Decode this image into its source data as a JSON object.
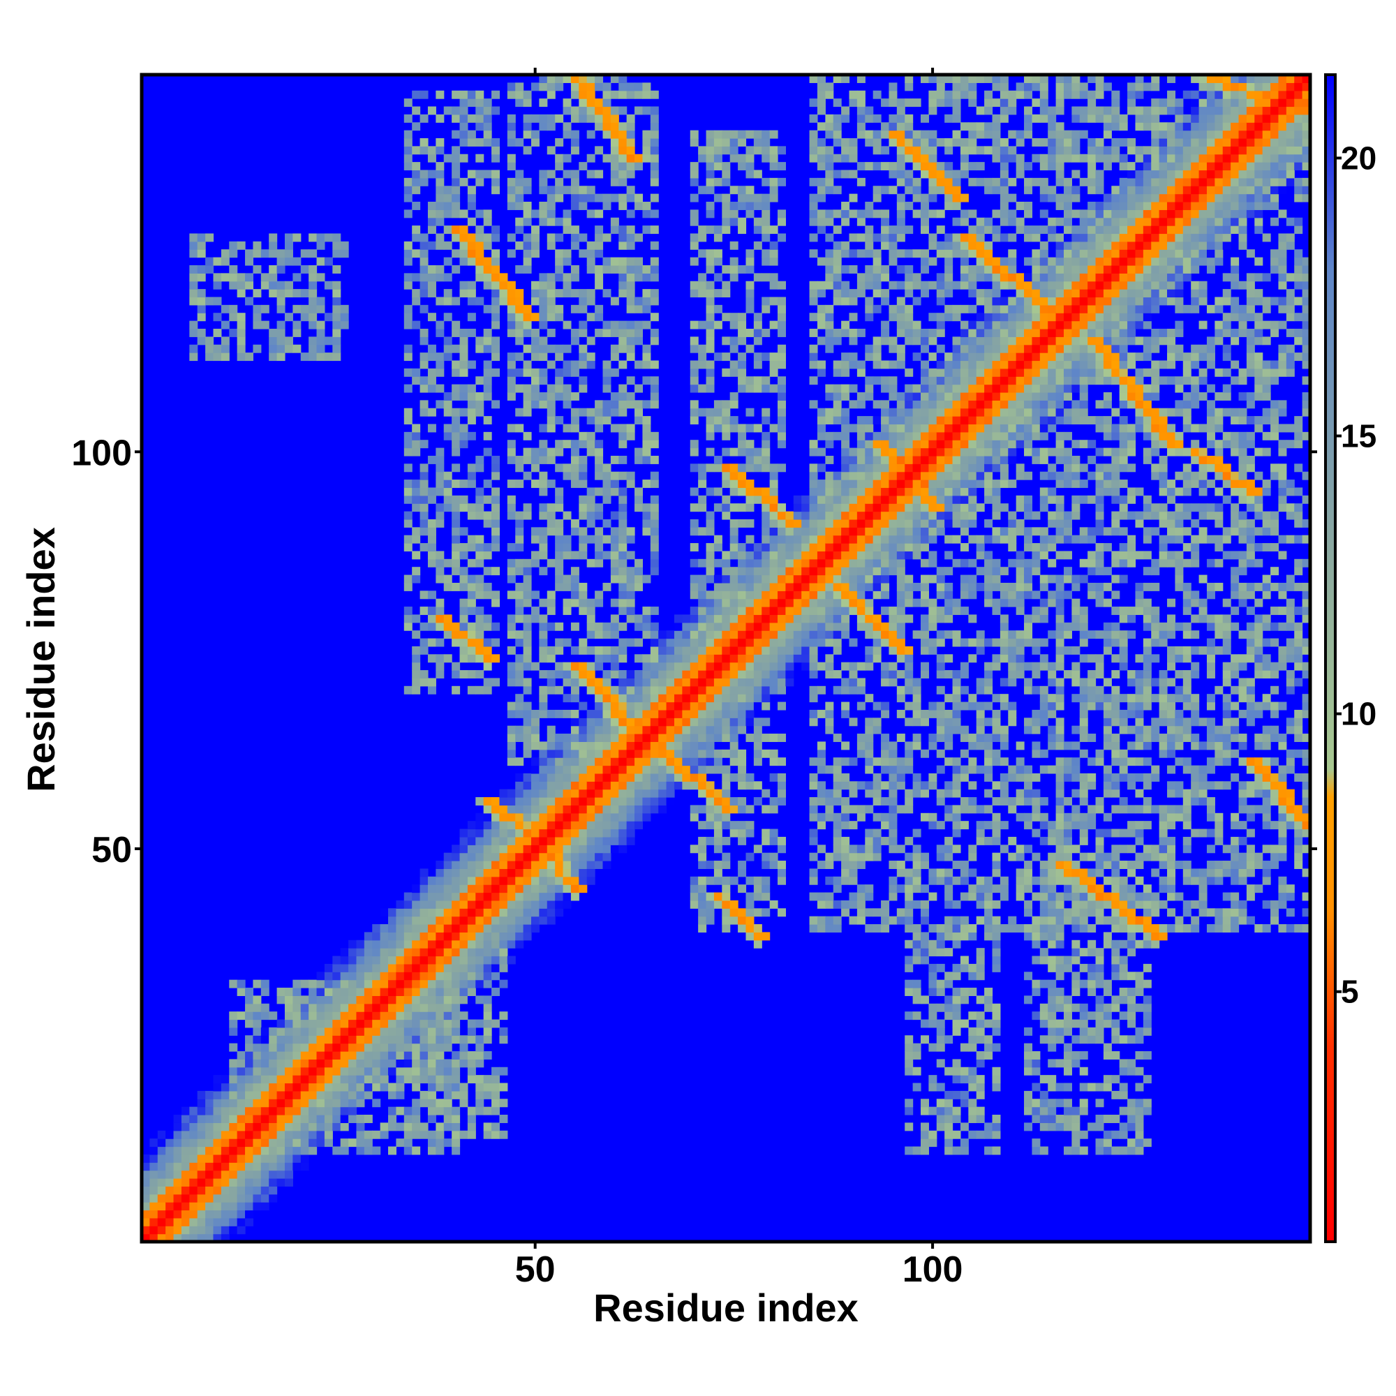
{
  "chart_data": {
    "type": "heatmap",
    "title": "",
    "xlabel": "Residue index",
    "ylabel": "Residue index",
    "n_residues": 147,
    "xlim": [
      0.5,
      147.5
    ],
    "ylim": [
      0.5,
      147.5
    ],
    "x_ticks": [
      50,
      100
    ],
    "y_ticks": [
      50,
      100
    ],
    "x_tick_labels": [
      "50",
      "100"
    ],
    "y_tick_labels": [
      "50",
      "100"
    ],
    "colorbar": {
      "range": [
        0.5,
        21.5
      ],
      "ticks": [
        5,
        10,
        15,
        20
      ],
      "tick_labels": [
        "5",
        "10",
        "15",
        "20"
      ],
      "stops": [
        {
          "value": 0.5,
          "color": "#ff0000"
        },
        {
          "value": 4.0,
          "color": "#ff3000"
        },
        {
          "value": 6.5,
          "color": "#ff9000"
        },
        {
          "value": 8.5,
          "color": "#ffa000"
        },
        {
          "value": 9.0,
          "color": "#a8c890"
        },
        {
          "value": 13.0,
          "color": "#8aa8a0"
        },
        {
          "value": 18.0,
          "color": "#5f86c8"
        },
        {
          "value": 21.5,
          "color": "#0000ff"
        }
      ]
    },
    "background_value": 21.5,
    "diagonal": {
      "start": 1,
      "end": 147,
      "distance_on_diagonal": 0.5
    },
    "contact_bands": [
      {
        "x": [
          40,
          49
        ],
        "y": [
          117,
          128
        ],
        "min_distance": 6
      },
      {
        "x": [
          55,
          62
        ],
        "y": [
          137,
          147
        ],
        "min_distance": 6
      },
      {
        "x": [
          95,
          103
        ],
        "y": [
          132,
          140
        ],
        "min_distance": 6
      },
      {
        "x": [
          104,
          116
        ],
        "y": [
          116,
          127
        ],
        "min_distance": 6
      },
      {
        "x": [
          120,
          130
        ],
        "y": [
          101,
          114
        ],
        "min_distance": 6
      },
      {
        "x": [
          133,
          140
        ],
        "y": [
          95,
          100
        ],
        "min_distance": 6
      },
      {
        "x": [
          135,
          147
        ],
        "y": [
          143,
          147
        ],
        "min_distance": 6
      },
      {
        "x": [
          38,
          44
        ],
        "y": [
          74,
          79
        ],
        "min_distance": 6
      },
      {
        "x": [
          55,
          64
        ],
        "y": [
          63,
          73
        ],
        "min_distance": 6
      },
      {
        "x": [
          66,
          74
        ],
        "y": [
          55,
          62
        ],
        "min_distance": 6
      },
      {
        "x": [
          44,
          50
        ],
        "y": [
          51,
          56
        ],
        "min_distance": 6
      },
      {
        "x": [
          51,
          55
        ],
        "y": [
          45,
          50
        ],
        "min_distance": 6
      },
      {
        "x": [
          73,
          78
        ],
        "y": [
          39,
          44
        ],
        "min_distance": 6
      },
      {
        "x": [
          116,
          128
        ],
        "y": [
          39,
          48
        ],
        "min_distance": 6
      },
      {
        "x": [
          140,
          147
        ],
        "y": [
          53,
          61
        ],
        "min_distance": 6
      },
      {
        "x": [
          88,
          96
        ],
        "y": [
          75,
          83
        ],
        "min_distance": 6
      },
      {
        "x": [
          74,
          82
        ],
        "y": [
          91,
          98
        ],
        "min_distance": 6
      },
      {
        "x": [
          93,
          100
        ],
        "y": [
          93,
          101
        ],
        "min_distance": 6
      }
    ],
    "contact_patches": [
      {
        "x": [
          7,
          26
        ],
        "y": [
          112,
          127
        ]
      },
      {
        "x": [
          34,
          45
        ],
        "y": [
          70,
          145
        ]
      },
      {
        "x": [
          47,
          65
        ],
        "y": [
          60,
          147
        ]
      },
      {
        "x": [
          70,
          81
        ],
        "y": [
          40,
          140
        ]
      },
      {
        "x": [
          85,
          116
        ],
        "y": [
          40,
          147
        ]
      },
      {
        "x": [
          97,
          108
        ],
        "y": [
          12,
          40
        ]
      },
      {
        "x": [
          112,
          127
        ],
        "y": [
          12,
          48
        ]
      },
      {
        "x": [
          116,
          147
        ],
        "y": [
          40,
          147
        ]
      },
      {
        "x": [
          35,
          46
        ],
        "y": [
          14,
          43
        ]
      },
      {
        "x": [
          12,
          40
        ],
        "y": [
          12,
          33
        ]
      }
    ]
  }
}
